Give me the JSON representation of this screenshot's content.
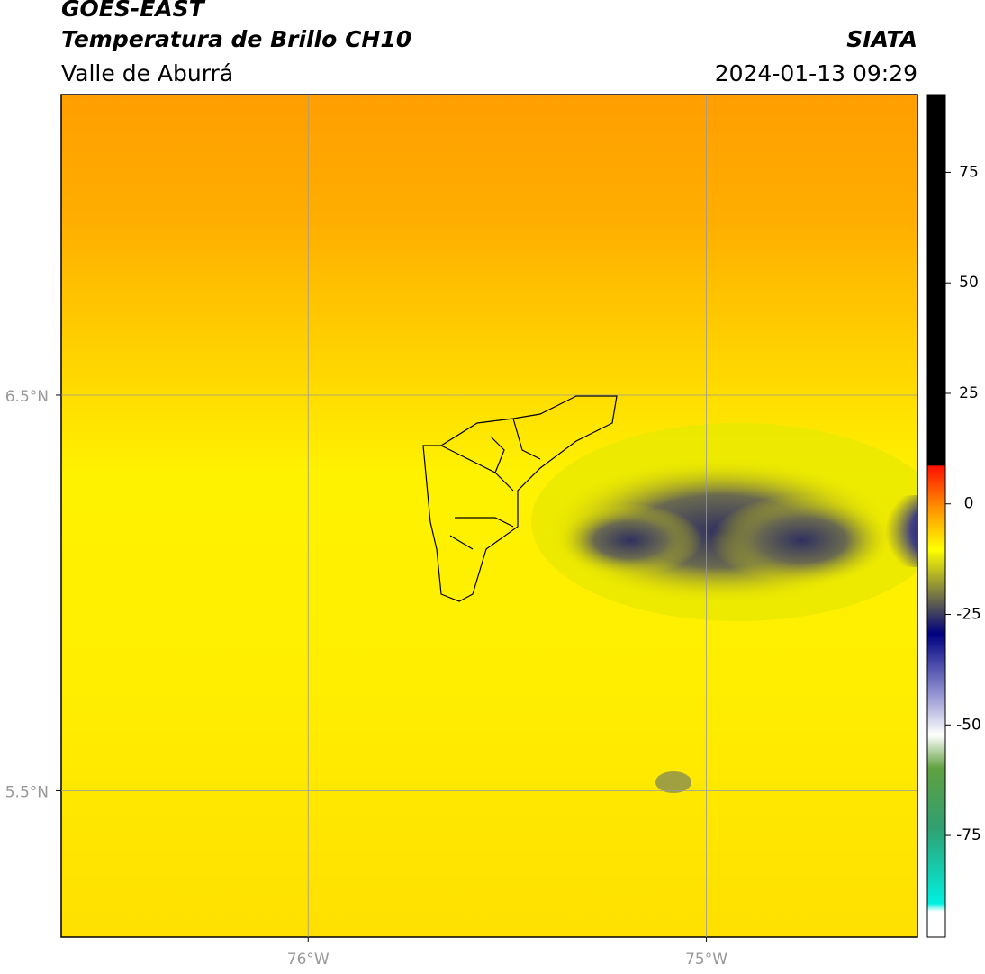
{
  "header": {
    "title": "GOES-EAST",
    "subtitle": "Temperatura de Brillo CH10",
    "region": "Valle de Aburrá",
    "source": "SIATA",
    "datetime": "2024-01-13 09:29"
  },
  "map": {
    "xlim": [
      -76.62,
      -74.47
    ],
    "ylim": [
      5.13,
      7.26
    ],
    "xticks": [
      {
        "value": -76,
        "label": "76°W"
      },
      {
        "value": -75,
        "label": "75°W"
      }
    ],
    "yticks": [
      {
        "value": 6.5,
        "label": "6.5°N"
      },
      {
        "value": 5.5,
        "label": "5.5°N"
      }
    ],
    "grid": true
  },
  "colorbar": {
    "lim": [
      -98,
      92.6
    ],
    "ticks": [
      75,
      50,
      25,
      0,
      -25,
      -50,
      -75
    ]
  }
}
